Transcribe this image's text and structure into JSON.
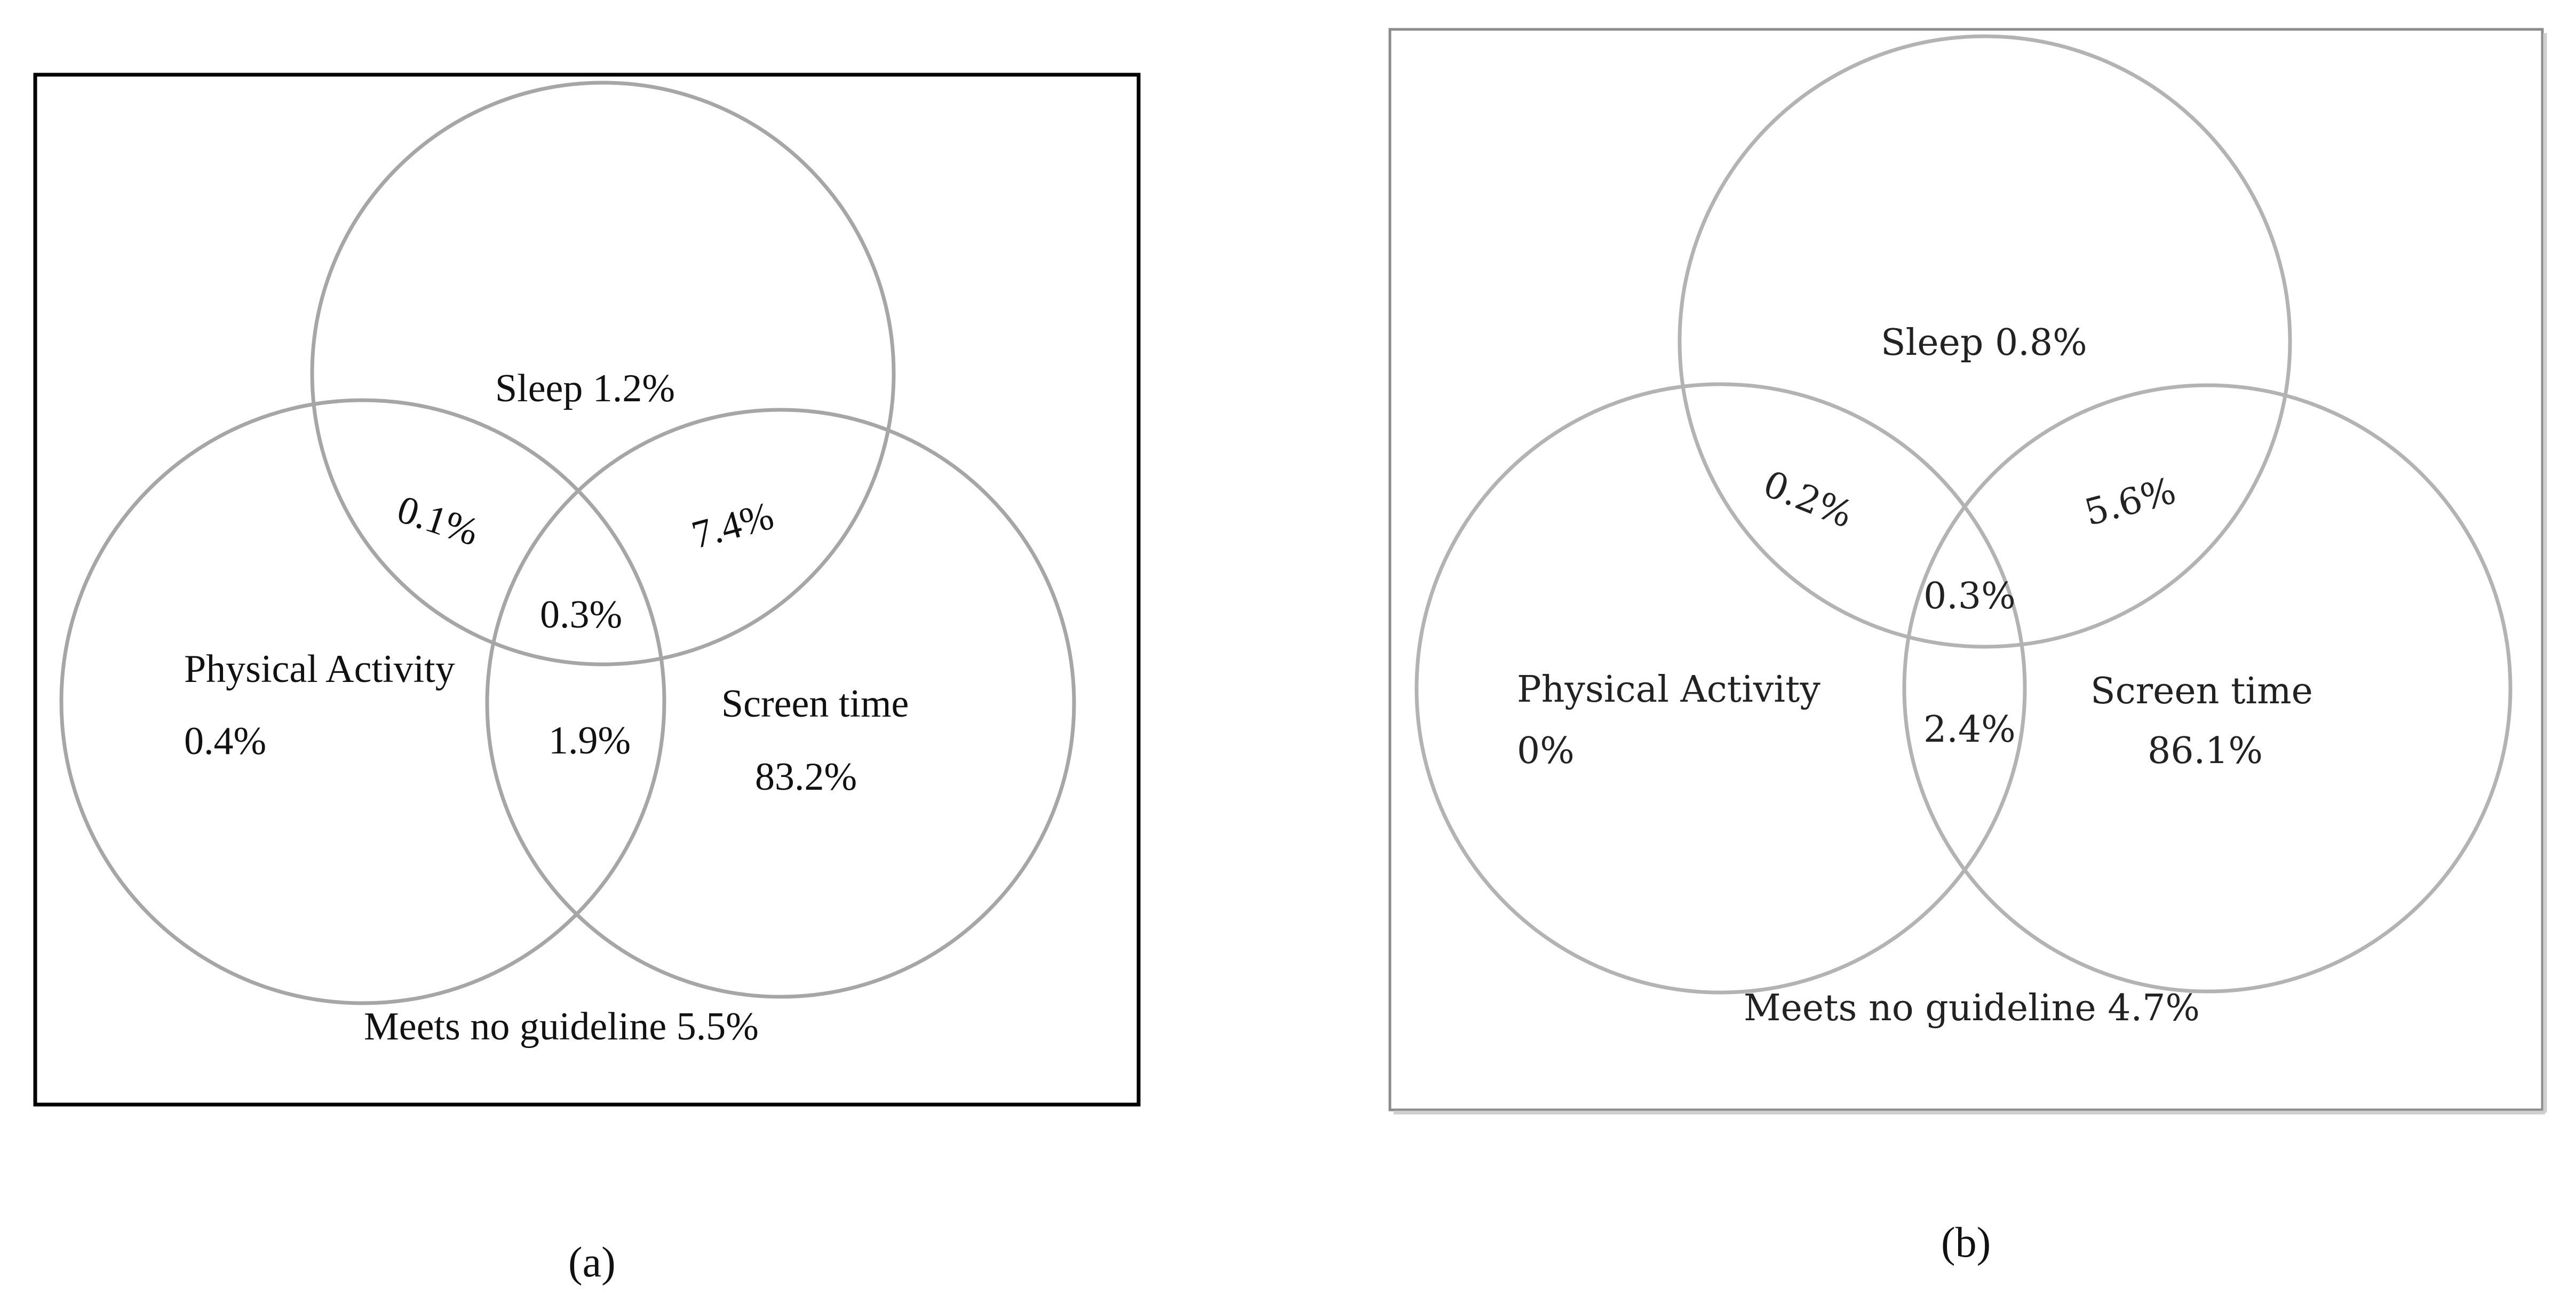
{
  "panel_a": {
    "caption": "(a)",
    "style": {
      "circle_color": "#a6a6a6",
      "frame_color": "#000000"
    },
    "labels": {
      "sleep": "Sleep 1.2%",
      "physical_activity": "Physical Activity",
      "physical_activity_pct": "0.4%",
      "screen_time": "Screen time",
      "screen_time_pct": "83.2%",
      "sleep_pa": "0.1%",
      "sleep_screen": "7.4%",
      "all_three": "0.3%",
      "pa_screen": "1.9%",
      "none": "Meets no guideline 5.5%"
    }
  },
  "panel_b": {
    "caption": "(b)",
    "style": {
      "circle_color": "#b3b3b3",
      "frame_color": "#8c8c8c"
    },
    "labels": {
      "sleep": "Sleep 0.8%",
      "physical_activity": "Physical Activity",
      "physical_activity_pct": "0%",
      "screen_time": "Screen time",
      "screen_time_pct": "86.1%",
      "sleep_pa": "0.2%",
      "sleep_screen": "5.6%",
      "all_three": "0.3%",
      "pa_screen": "2.4%",
      "none": "Meets no guideline 4.7%"
    }
  }
}
